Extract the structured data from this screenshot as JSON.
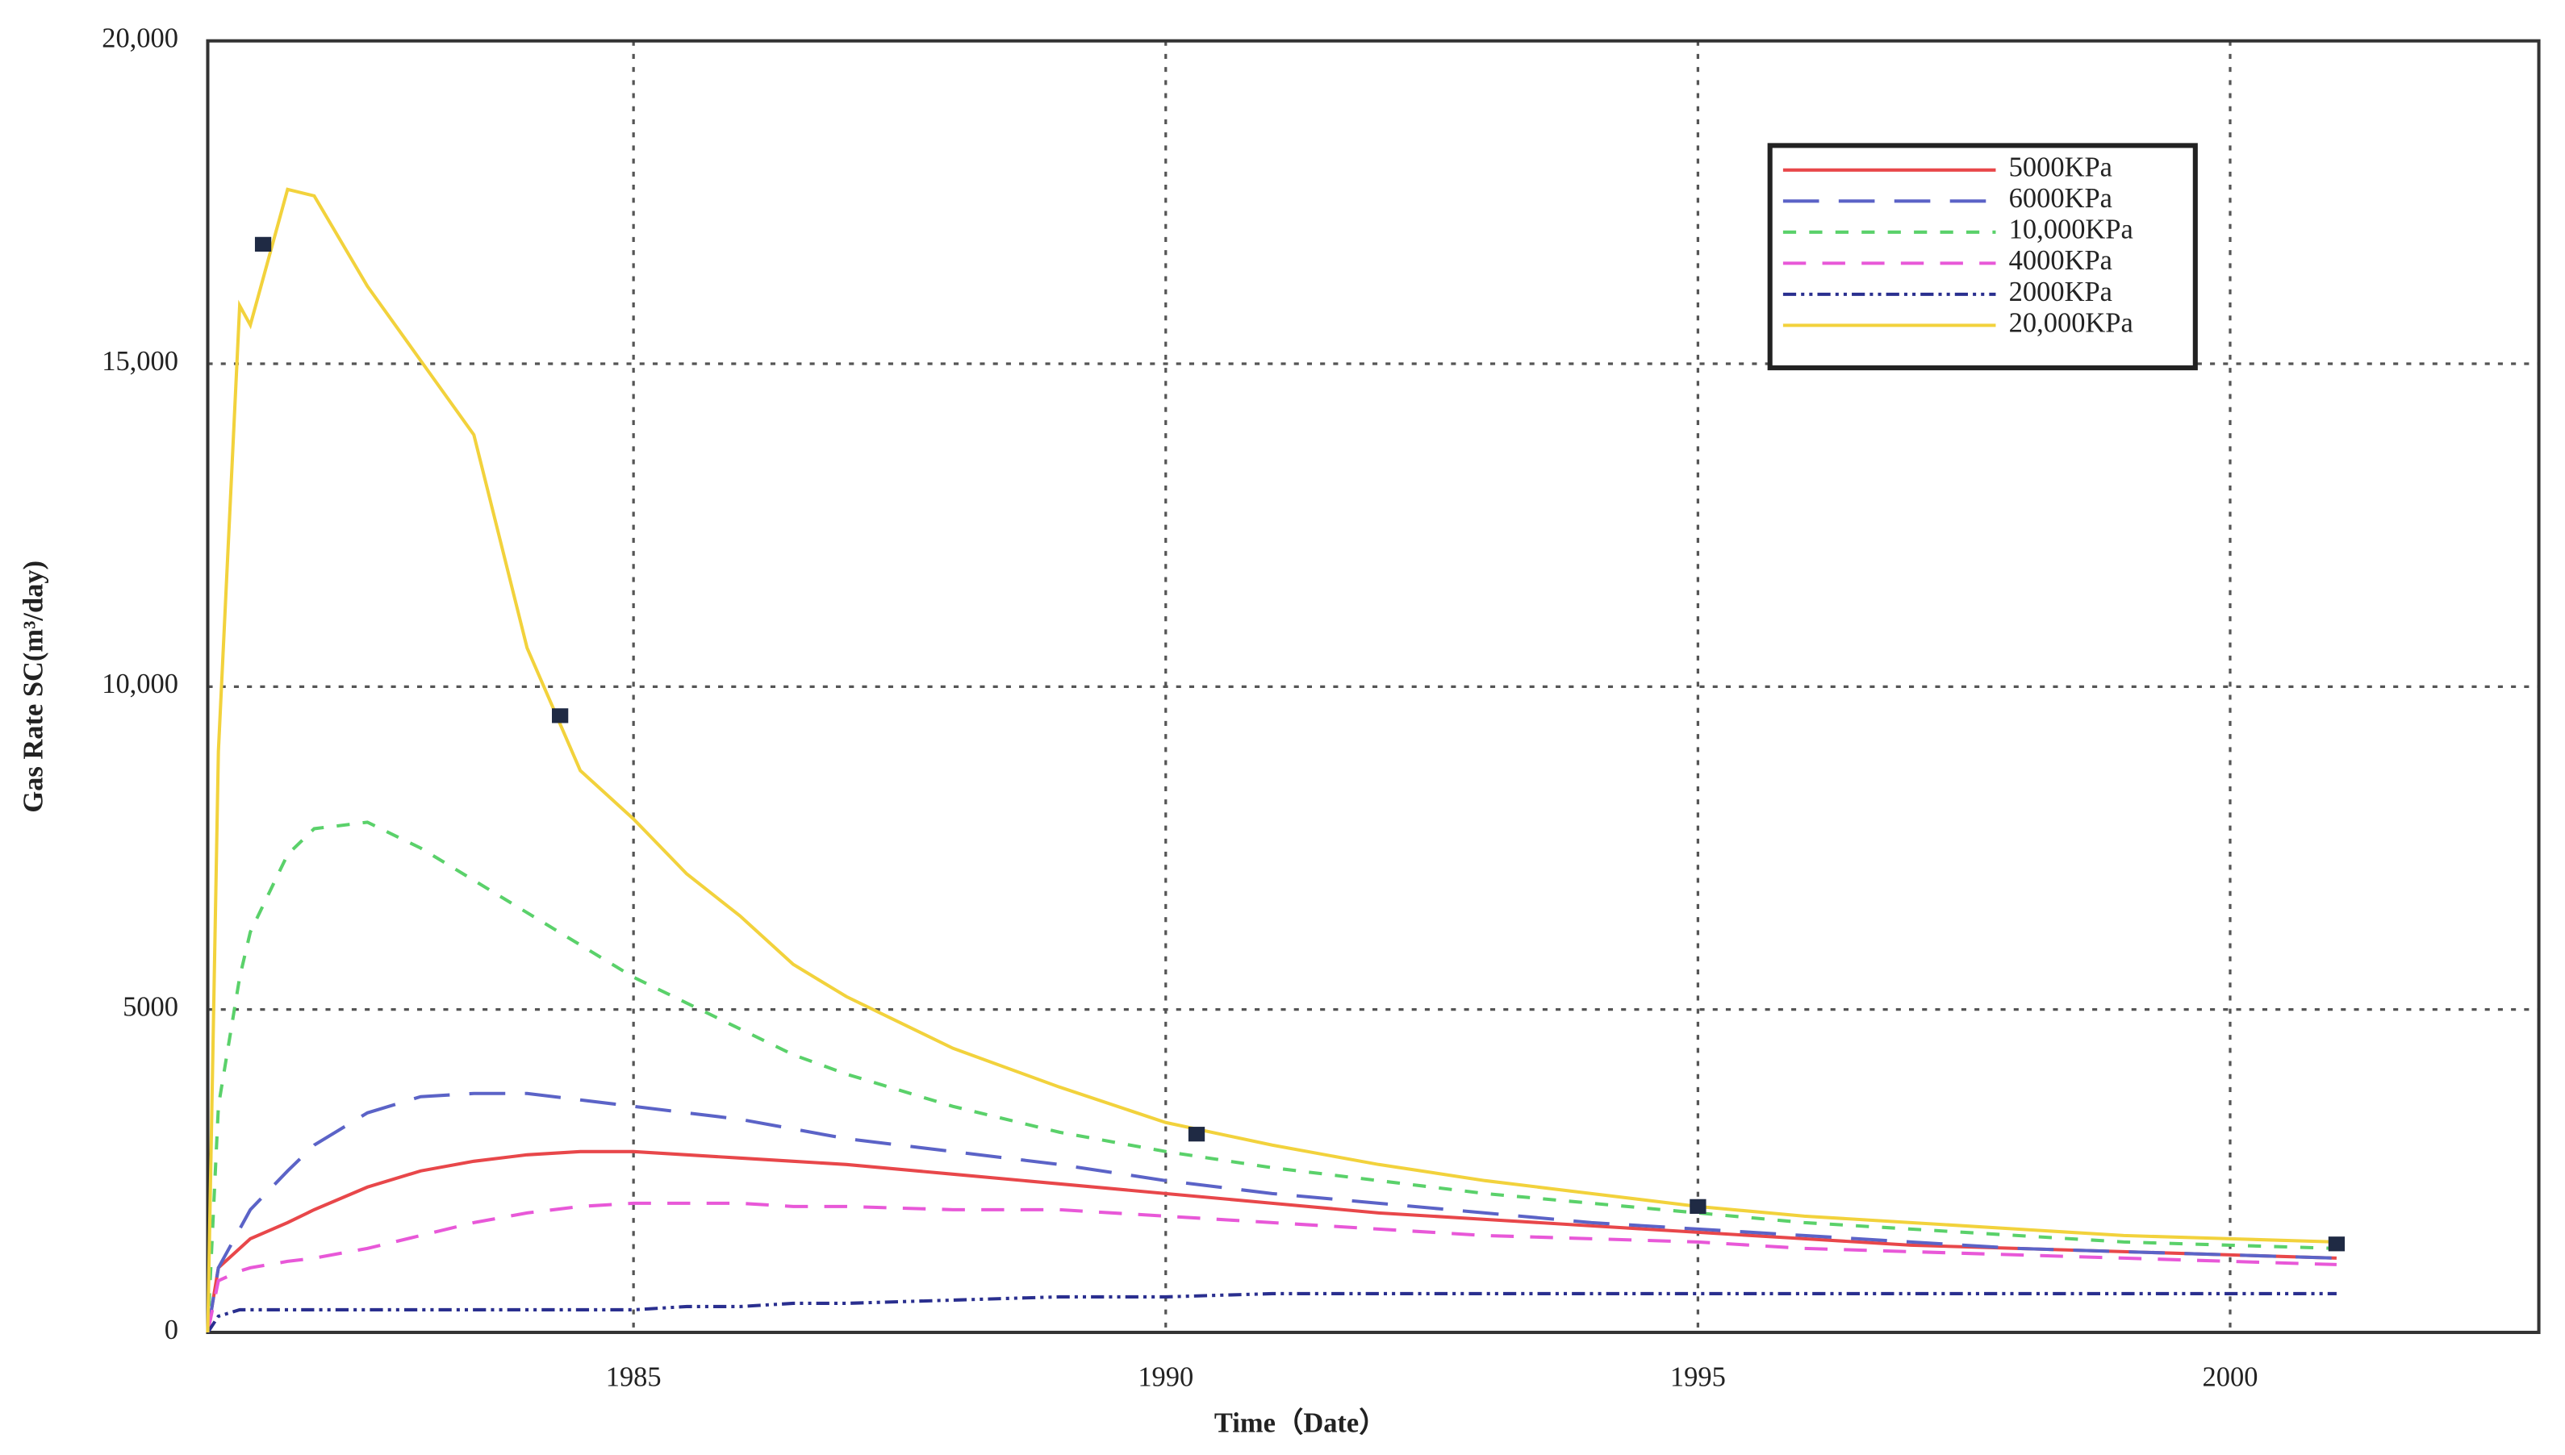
{
  "chart_data": {
    "type": "line",
    "x_label": "Time（Date）",
    "y_label": "Gas Rate SC(m³/day)",
    "xlim": [
      1981,
      2002.9
    ],
    "ylim": [
      0,
      20000
    ],
    "xticks": [
      1985,
      1990,
      1995,
      2000
    ],
    "yticks": [
      0,
      {
        "value": 5000,
        "label": "5000"
      },
      {
        "value": 10000,
        "label": "10,000"
      },
      {
        "value": 15000,
        "label": "15,000"
      },
      {
        "value": 20000,
        "label": "20,000"
      }
    ],
    "grid": true,
    "legend": "upper right",
    "x": [
      1981.0,
      1981.1,
      1981.3,
      1981.4,
      1981.75,
      1982,
      1982.5,
      1983,
      1983.5,
      1984,
      1984.5,
      1985,
      1985.5,
      1986,
      1986.5,
      1987,
      1988,
      1989,
      1990,
      1991,
      1992,
      1993,
      1994,
      1995,
      1996,
      1997,
      1998,
      1999,
      2000,
      2001
    ],
    "series": [
      {
        "name": "5000KPa",
        "color": "#e8474a",
        "linestyle": "solid",
        "values": [
          0,
          1000,
          1300,
          1450,
          1700,
          1900,
          2250,
          2500,
          2650,
          2750,
          2800,
          2800,
          2750,
          2700,
          2650,
          2600,
          2450,
          2300,
          2150,
          2000,
          1850,
          1750,
          1650,
          1550,
          1450,
          1350,
          1300,
          1250,
          1200,
          1150
        ]
      },
      {
        "name": "6000KPa",
        "color": "#5b63c7",
        "linestyle": "long",
        "values": [
          0,
          1000,
          1600,
          1900,
          2500,
          2900,
          3400,
          3650,
          3700,
          3700,
          3600,
          3500,
          3400,
          3300,
          3150,
          3000,
          2800,
          2600,
          2350,
          2150,
          2000,
          1850,
          1700,
          1600,
          1500,
          1400,
          1300,
          1250,
          1200,
          1150
        ]
      },
      {
        "name": "10,000KPa",
        "color": "#5ad16a",
        "linestyle": "short",
        "values": [
          0,
          3500,
          5500,
          6200,
          7400,
          7800,
          7900,
          7500,
          7000,
          6500,
          6000,
          5500,
          5100,
          4700,
          4300,
          4000,
          3500,
          3100,
          2800,
          2550,
          2350,
          2150,
          2000,
          1850,
          1700,
          1600,
          1500,
          1400,
          1350,
          1300
        ]
      },
      {
        "name": "4000KPa",
        "color": "#e858d8",
        "linestyle": "medium",
        "values": [
          0,
          800,
          950,
          1000,
          1100,
          1150,
          1300,
          1500,
          1700,
          1850,
          1950,
          2000,
          2000,
          2000,
          1950,
          1950,
          1900,
          1900,
          1800,
          1700,
          1600,
          1500,
          1450,
          1400,
          1300,
          1250,
          1200,
          1150,
          1100,
          1050
        ]
      },
      {
        "name": "2000KPa",
        "color": "#2a2f8f",
        "linestyle": "dashdotdot",
        "values": [
          0,
          250,
          350,
          350,
          350,
          350,
          350,
          350,
          350,
          350,
          350,
          350,
          400,
          400,
          450,
          450,
          500,
          550,
          550,
          600,
          600,
          600,
          600,
          600,
          600,
          600,
          600,
          600,
          600,
          600
        ]
      },
      {
        "name": "20,000KPa",
        "color": "#f2d23c",
        "linestyle": "solid",
        "values": [
          0,
          9000,
          15900,
          15600,
          17700,
          17600,
          16200,
          15050,
          13900,
          10600,
          8700,
          7950,
          7100,
          6450,
          5700,
          5200,
          4400,
          3800,
          3250,
          2900,
          2600,
          2350,
          2150,
          1950,
          1800,
          1700,
          1600,
          1500,
          1450,
          1400
        ]
      }
    ],
    "markers": {
      "color": "#1f2a44",
      "x": [
        1981.52,
        1984.31,
        1990.29,
        1995,
        2001
      ],
      "values": [
        16850,
        9550,
        3070,
        1950,
        1370
      ]
    }
  }
}
